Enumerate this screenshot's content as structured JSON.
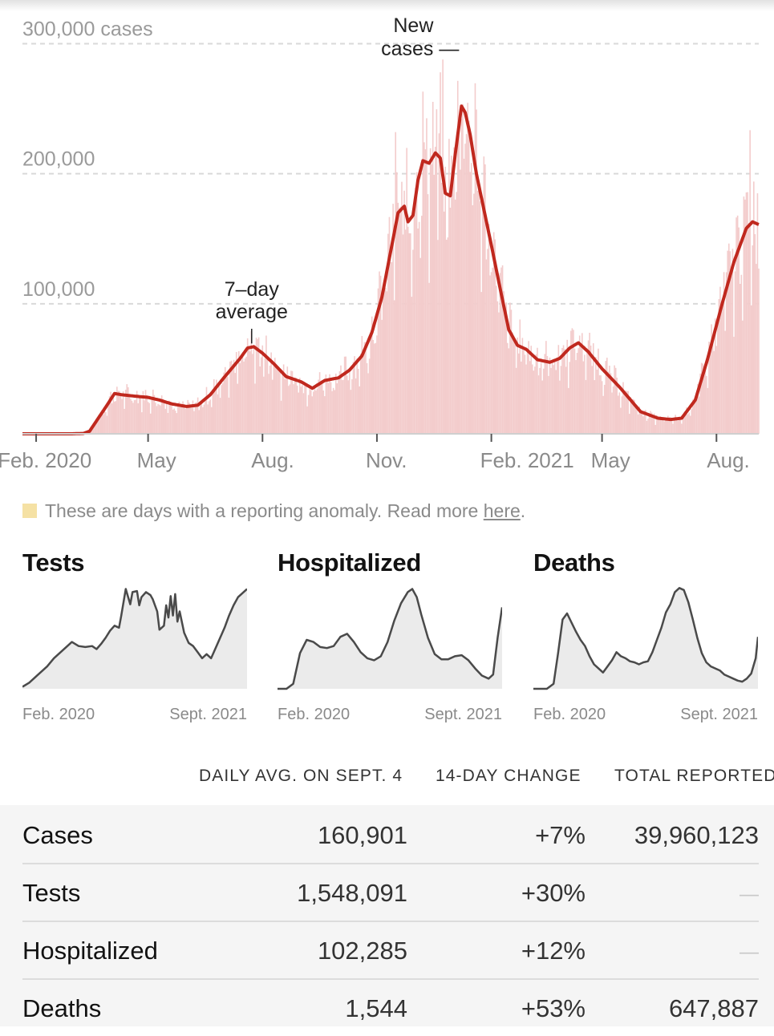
{
  "chart_data": {
    "type": "area",
    "title": "",
    "y_ticks": [
      "300,000 cases",
      "200,000",
      "100,000"
    ],
    "y_tick_values": [
      300000,
      200000,
      100000
    ],
    "ylim": [
      0,
      320000
    ],
    "x_ticks": [
      "Feb. 2020",
      "May",
      "Aug.",
      "Nov.",
      "Feb. 2021",
      "May",
      "Aug."
    ],
    "x_tick_dates": [
      "2020-02-01",
      "2020-05-01",
      "2020-08-01",
      "2020-11-01",
      "2021-02-01",
      "2021-05-01",
      "2021-08-01"
    ],
    "x_range": [
      "2020-01-21",
      "2021-09-04"
    ],
    "annotations": [
      {
        "text_lines": [
          "New",
          "cases —"
        ],
        "date": "2021-01-08",
        "value": 300000
      },
      {
        "text_lines": [
          "7–day",
          "average"
        ],
        "date": "2020-07-22",
        "value": 67000
      }
    ],
    "bar_color": "#f3cccc",
    "line_color": "#c0281e",
    "anomaly_color": "#f5e1a4",
    "series": [
      {
        "kind": "7-day average",
        "points": [
          [
            "2020-01-21",
            0
          ],
          [
            "2020-03-01",
            0
          ],
          [
            "2020-03-10",
            300
          ],
          [
            "2020-03-15",
            2000
          ],
          [
            "2020-03-22",
            12000
          ],
          [
            "2020-03-29",
            22000
          ],
          [
            "2020-04-04",
            31000
          ],
          [
            "2020-04-10",
            30000
          ],
          [
            "2020-04-20",
            29000
          ],
          [
            "2020-05-01",
            28000
          ],
          [
            "2020-05-10",
            26000
          ],
          [
            "2020-05-20",
            23000
          ],
          [
            "2020-06-01",
            21000
          ],
          [
            "2020-06-10",
            22000
          ],
          [
            "2020-06-20",
            30000
          ],
          [
            "2020-06-30",
            42000
          ],
          [
            "2020-07-07",
            50000
          ],
          [
            "2020-07-14",
            58000
          ],
          [
            "2020-07-20",
            66000
          ],
          [
            "2020-07-25",
            67000
          ],
          [
            "2020-08-01",
            62000
          ],
          [
            "2020-08-10",
            54000
          ],
          [
            "2020-08-20",
            44000
          ],
          [
            "2020-09-01",
            40000
          ],
          [
            "2020-09-10",
            35000
          ],
          [
            "2020-09-20",
            41000
          ],
          [
            "2020-10-01",
            43000
          ],
          [
            "2020-10-10",
            49000
          ],
          [
            "2020-10-20",
            60000
          ],
          [
            "2020-10-28",
            78000
          ],
          [
            "2020-11-05",
            105000
          ],
          [
            "2020-11-12",
            140000
          ],
          [
            "2020-11-18",
            170000
          ],
          [
            "2020-11-23",
            175000
          ],
          [
            "2020-11-26",
            163000
          ],
          [
            "2020-11-30",
            168000
          ],
          [
            "2020-12-04",
            195000
          ],
          [
            "2020-12-08",
            210000
          ],
          [
            "2020-12-13",
            208000
          ],
          [
            "2020-12-18",
            216000
          ],
          [
            "2020-12-22",
            212000
          ],
          [
            "2020-12-26",
            185000
          ],
          [
            "2020-12-30",
            183000
          ],
          [
            "2021-01-03",
            215000
          ],
          [
            "2021-01-08",
            252000
          ],
          [
            "2021-01-11",
            247000
          ],
          [
            "2021-01-15",
            230000
          ],
          [
            "2021-01-20",
            200000
          ],
          [
            "2021-01-25",
            177000
          ],
          [
            "2021-02-01",
            145000
          ],
          [
            "2021-02-08",
            112000
          ],
          [
            "2021-02-15",
            80000
          ],
          [
            "2021-02-22",
            68000
          ],
          [
            "2021-03-01",
            65000
          ],
          [
            "2021-03-10",
            57000
          ],
          [
            "2021-03-20",
            55000
          ],
          [
            "2021-03-28",
            58000
          ],
          [
            "2021-04-05",
            66000
          ],
          [
            "2021-04-12",
            70000
          ],
          [
            "2021-04-20",
            63000
          ],
          [
            "2021-05-01",
            50000
          ],
          [
            "2021-05-15",
            36000
          ],
          [
            "2021-06-01",
            17000
          ],
          [
            "2021-06-15",
            12000
          ],
          [
            "2021-06-25",
            11000
          ],
          [
            "2021-07-04",
            12000
          ],
          [
            "2021-07-15",
            26000
          ],
          [
            "2021-07-25",
            58000
          ],
          [
            "2021-08-05",
            98000
          ],
          [
            "2021-08-15",
            132000
          ],
          [
            "2021-08-25",
            158000
          ],
          [
            "2021-08-30",
            163000
          ],
          [
            "2021-09-04",
            160901
          ]
        ]
      }
    ]
  },
  "note": {
    "text": "These are days with a reporting anomaly. Read more ",
    "link": "here",
    "end": "."
  },
  "mini_charts": [
    {
      "title": "Tests",
      "start_label": "Feb. 2020",
      "end_label": "Sept. 2021",
      "points": [
        [
          0,
          0.02
        ],
        [
          3,
          0.06
        ],
        [
          7,
          0.14
        ],
        [
          11,
          0.22
        ],
        [
          14,
          0.3
        ],
        [
          17,
          0.36
        ],
        [
          20,
          0.42
        ],
        [
          22,
          0.46
        ],
        [
          25,
          0.42
        ],
        [
          28,
          0.41
        ],
        [
          31,
          0.42
        ],
        [
          33,
          0.39
        ],
        [
          35,
          0.44
        ],
        [
          37,
          0.5
        ],
        [
          39,
          0.57
        ],
        [
          41,
          0.62
        ],
        [
          43,
          0.6
        ],
        [
          44,
          0.72
        ],
        [
          45,
          0.85
        ],
        [
          46,
          0.98
        ],
        [
          48,
          0.83
        ],
        [
          49,
          0.95
        ],
        [
          51,
          0.96
        ],
        [
          52,
          0.82
        ],
        [
          53,
          0.9
        ],
        [
          55,
          0.95
        ],
        [
          57,
          0.92
        ],
        [
          58,
          0.88
        ],
        [
          60,
          0.76
        ],
        [
          61,
          0.58
        ],
        [
          63,
          0.62
        ],
        [
          64,
          0.82
        ],
        [
          65,
          0.7
        ],
        [
          66,
          0.91
        ],
        [
          67,
          0.72
        ],
        [
          68,
          0.93
        ],
        [
          69,
          0.66
        ],
        [
          70,
          0.76
        ],
        [
          72,
          0.55
        ],
        [
          74,
          0.45
        ],
        [
          76,
          0.42
        ],
        [
          78,
          0.36
        ],
        [
          80,
          0.3
        ],
        [
          82,
          0.34
        ],
        [
          84,
          0.3
        ],
        [
          86,
          0.4
        ],
        [
          88,
          0.5
        ],
        [
          90,
          0.6
        ],
        [
          92,
          0.72
        ],
        [
          94,
          0.82
        ],
        [
          96,
          0.9
        ],
        [
          100,
          0.98
        ]
      ]
    },
    {
      "title": "Hospitalized",
      "start_label": "Feb. 2020",
      "end_label": "Sept. 2021",
      "points": [
        [
          0,
          0
        ],
        [
          4,
          0
        ],
        [
          7,
          0.05
        ],
        [
          10,
          0.35
        ],
        [
          13,
          0.48
        ],
        [
          16,
          0.46
        ],
        [
          19,
          0.41
        ],
        [
          22,
          0.4
        ],
        [
          25,
          0.42
        ],
        [
          28,
          0.51
        ],
        [
          31,
          0.54
        ],
        [
          34,
          0.46
        ],
        [
          37,
          0.36
        ],
        [
          40,
          0.3
        ],
        [
          43,
          0.28
        ],
        [
          46,
          0.32
        ],
        [
          49,
          0.46
        ],
        [
          52,
          0.67
        ],
        [
          55,
          0.84
        ],
        [
          58,
          0.95
        ],
        [
          60,
          0.98
        ],
        [
          62,
          0.9
        ],
        [
          64,
          0.73
        ],
        [
          67,
          0.5
        ],
        [
          70,
          0.34
        ],
        [
          73,
          0.29
        ],
        [
          76,
          0.29
        ],
        [
          79,
          0.32
        ],
        [
          82,
          0.33
        ],
        [
          85,
          0.28
        ],
        [
          88,
          0.2
        ],
        [
          91,
          0.13
        ],
        [
          94,
          0.1
        ],
        [
          96,
          0.14
        ],
        [
          98,
          0.5
        ],
        [
          100,
          0.8
        ]
      ]
    },
    {
      "title": "Deaths",
      "start_label": "Feb. 2020",
      "end_label": "Sept. 2021",
      "points": [
        [
          0,
          0
        ],
        [
          6,
          0
        ],
        [
          9,
          0.05
        ],
        [
          11,
          0.35
        ],
        [
          13,
          0.68
        ],
        [
          15,
          0.74
        ],
        [
          17,
          0.65
        ],
        [
          19,
          0.56
        ],
        [
          21,
          0.48
        ],
        [
          23,
          0.42
        ],
        [
          25,
          0.32
        ],
        [
          27,
          0.24
        ],
        [
          29,
          0.2
        ],
        [
          31,
          0.16
        ],
        [
          33,
          0.22
        ],
        [
          35,
          0.28
        ],
        [
          37,
          0.36
        ],
        [
          39,
          0.32
        ],
        [
          41,
          0.3
        ],
        [
          43,
          0.27
        ],
        [
          45,
          0.26
        ],
        [
          47,
          0.24
        ],
        [
          49,
          0.26
        ],
        [
          51,
          0.27
        ],
        [
          53,
          0.36
        ],
        [
          55,
          0.48
        ],
        [
          57,
          0.6
        ],
        [
          59,
          0.75
        ],
        [
          61,
          0.83
        ],
        [
          63,
          0.95
        ],
        [
          65,
          0.99
        ],
        [
          67,
          0.97
        ],
        [
          69,
          0.85
        ],
        [
          71,
          0.68
        ],
        [
          73,
          0.5
        ],
        [
          75,
          0.35
        ],
        [
          77,
          0.26
        ],
        [
          79,
          0.22
        ],
        [
          81,
          0.2
        ],
        [
          83,
          0.18
        ],
        [
          85,
          0.14
        ],
        [
          87,
          0.12
        ],
        [
          89,
          0.1
        ],
        [
          91,
          0.08
        ],
        [
          93,
          0.07
        ],
        [
          95,
          0.1
        ],
        [
          97,
          0.15
        ],
        [
          99,
          0.3
        ],
        [
          100,
          0.51
        ]
      ]
    }
  ],
  "stats": {
    "columns": [
      "DAILY AVG. ON SEPT. 4",
      "14-DAY CHANGE",
      "TOTAL REPORTED"
    ],
    "rows": [
      {
        "label": "Cases",
        "daily": "160,901",
        "change": "+7%",
        "total": "39,960,123"
      },
      {
        "label": "Tests",
        "daily": "1,548,091",
        "change": "+30%",
        "total": "—"
      },
      {
        "label": "Hospitalized",
        "daily": "102,285",
        "change": "+12%",
        "total": "—"
      },
      {
        "label": "Deaths",
        "daily": "1,544",
        "change": "+53%",
        "total": "647,887"
      }
    ]
  }
}
